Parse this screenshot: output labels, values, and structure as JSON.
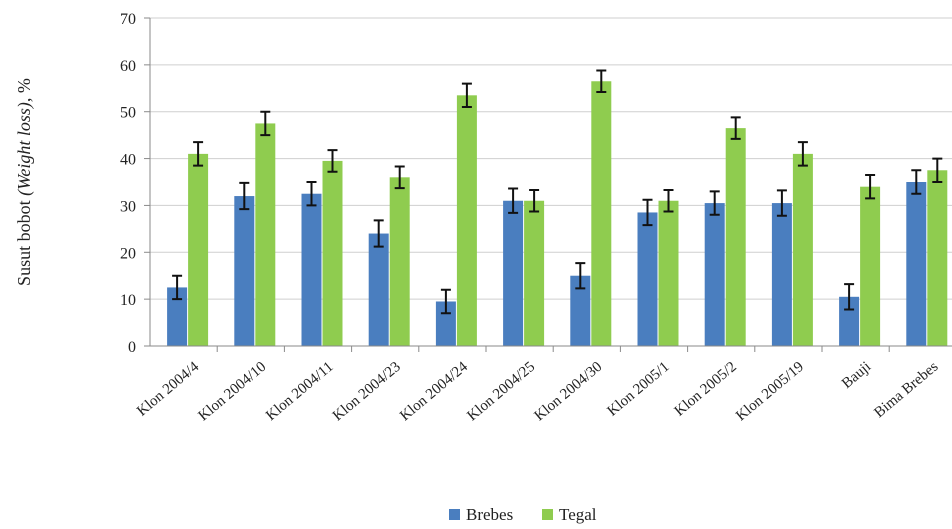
{
  "chart_data": {
    "type": "bar",
    "categories": [
      "Klon 2004/4",
      "Klon 2004/10",
      "Klon 2004/11",
      "Klon 2004/23",
      "Klon 2004/24",
      "Klon 2004/25",
      "Klon 2004/30",
      "Klon 2005/1",
      "Klon 2005/2",
      "Klon 2005/19",
      "Bauji",
      "Bima Brebes"
    ],
    "series": [
      {
        "name": "Brebes",
        "color": "#4a7ebf",
        "values": [
          12.5,
          32,
          32.5,
          24,
          9.5,
          31,
          15,
          28.5,
          30.5,
          30.5,
          10.5,
          35
        ],
        "errors": [
          2.5,
          2.8,
          2.5,
          2.8,
          2.5,
          2.6,
          2.7,
          2.7,
          2.5,
          2.7,
          2.7,
          2.5
        ]
      },
      {
        "name": "Tegal",
        "color": "#8fcc4f",
        "values": [
          41,
          47.5,
          39.5,
          36,
          53.5,
          31,
          56.5,
          31,
          46.5,
          41,
          34,
          37.5
        ],
        "errors": [
          2.5,
          2.5,
          2.3,
          2.3,
          2.5,
          2.3,
          2.3,
          2.3,
          2.3,
          2.5,
          2.5,
          2.5
        ]
      }
    ],
    "ylabel_plain": "Susut bobot ",
    "ylabel_italic": "(Weight loss)",
    "ylabel_unit": ", %",
    "yticks": [
      "0",
      "10",
      "20",
      "30",
      "40",
      "50",
      "60",
      "70"
    ],
    "ylim": [
      0,
      70
    ],
    "grid": true,
    "legend_position": "bottom"
  }
}
